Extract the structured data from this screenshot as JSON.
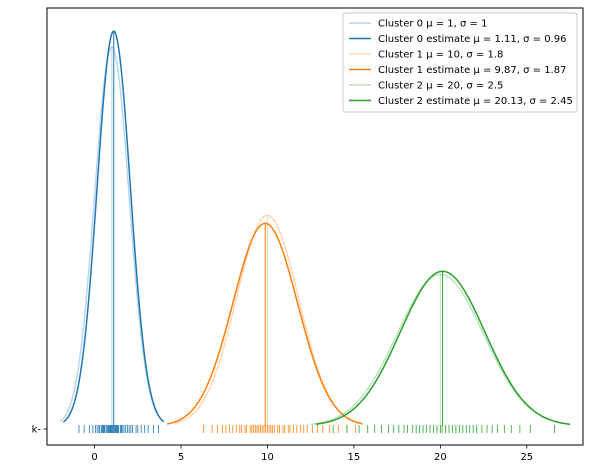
{
  "chart_data": {
    "type": "line",
    "title": "",
    "xlabel": "",
    "ylabel": "",
    "xlim": [
      -2.75,
      28.25
    ],
    "ylim": [
      -0.02,
      0.44
    ],
    "grid": false,
    "legend_position": "top-right",
    "x_ticks": [
      0,
      5,
      10,
      15,
      20,
      25
    ],
    "y_tick_labels": [
      "k-"
    ],
    "colors": {
      "blue": "#1f77b4",
      "orange": "#ff7f0e",
      "green": "#2ca02c"
    },
    "series": [
      {
        "name": "Cluster 0 μ = 1, σ = 1",
        "kind": "true",
        "mu": 1,
        "sigma": 1,
        "color": "#1f77b4",
        "alpha": 0.3,
        "x_range": [
          -2,
          4
        ]
      },
      {
        "name": "Cluster 0 estimate μ = 1.11, σ = 0.96",
        "kind": "estimate",
        "mu": 1.11,
        "sigma": 0.96,
        "color": "#1f77b4",
        "alpha": 1,
        "x_range": [
          -1.8,
          4.0
        ]
      },
      {
        "name": "Cluster 1 μ = 10, σ = 1.8",
        "kind": "true",
        "mu": 10,
        "sigma": 1.8,
        "color": "#ff7f0e",
        "alpha": 0.3,
        "x_range": [
          4.6,
          15.4
        ]
      },
      {
        "name": "Cluster 1 estimate μ = 9.87, σ = 1.87",
        "kind": "estimate",
        "mu": 9.87,
        "sigma": 1.87,
        "color": "#ff7f0e",
        "alpha": 1,
        "x_range": [
          4.2,
          15.5
        ]
      },
      {
        "name": "Cluster 2 μ = 20, σ = 2.5",
        "kind": "true",
        "mu": 20,
        "sigma": 2.5,
        "color": "#2ca02c",
        "alpha": 0.3,
        "x_range": [
          12.5,
          27.5
        ]
      },
      {
        "name": "Cluster 2 estimate μ = 20.13, σ = 2.45",
        "kind": "estimate",
        "mu": 20.13,
        "sigma": 2.45,
        "color": "#2ca02c",
        "alpha": 1,
        "x_range": [
          12.8,
          27.5
        ]
      }
    ],
    "rug": [
      {
        "color": "#1f77b4",
        "values": [
          -0.9,
          -0.6,
          -0.3,
          -0.1,
          0.05,
          0.15,
          0.25,
          0.3,
          0.4,
          0.45,
          0.5,
          0.55,
          0.6,
          0.7,
          0.75,
          0.8,
          0.85,
          0.9,
          0.95,
          1.0,
          1.05,
          1.1,
          1.15,
          1.2,
          1.25,
          1.3,
          1.35,
          1.4,
          1.5,
          1.55,
          1.6,
          1.7,
          1.8,
          1.9,
          2.0,
          2.1,
          2.2,
          2.4,
          2.5,
          2.7,
          2.9,
          3.1,
          3.4,
          3.7
        ]
      },
      {
        "color": "#ff7f0e",
        "values": [
          6.3,
          6.8,
          7.1,
          7.4,
          7.6,
          7.8,
          8.0,
          8.2,
          8.4,
          8.5,
          8.7,
          8.8,
          9.0,
          9.1,
          9.2,
          9.3,
          9.4,
          9.5,
          9.6,
          9.7,
          9.8,
          9.9,
          10.0,
          10.1,
          10.2,
          10.3,
          10.4,
          10.6,
          10.7,
          10.9,
          11.0,
          11.2,
          11.3,
          11.5,
          11.7,
          11.9,
          12.1,
          12.3,
          12.6,
          12.9,
          13.2,
          13.6,
          14.1,
          14.6,
          15.1
        ]
      },
      {
        "color": "#2ca02c",
        "values": [
          13.8,
          14.6,
          15.3,
          15.8,
          16.2,
          16.6,
          17.0,
          17.3,
          17.6,
          17.9,
          18.1,
          18.4,
          18.6,
          18.8,
          19.0,
          19.2,
          19.4,
          19.6,
          19.8,
          20.0,
          20.1,
          20.3,
          20.5,
          20.7,
          20.9,
          21.1,
          21.3,
          21.5,
          21.7,
          21.9,
          22.1,
          22.4,
          22.7,
          23.0,
          23.3,
          23.7,
          24.1,
          24.6,
          25.2,
          26.6
        ]
      }
    ]
  }
}
